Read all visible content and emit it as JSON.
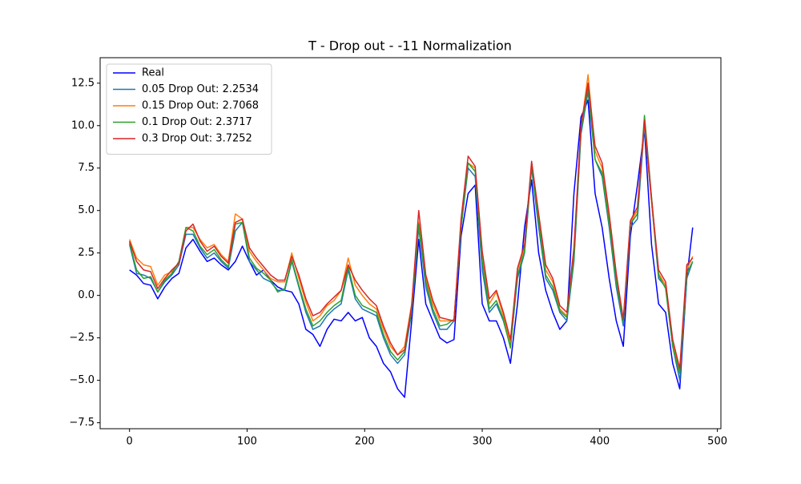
{
  "chart_data": {
    "type": "line",
    "title": "T - Drop out - -11 Normalization",
    "x": [
      0,
      6,
      12,
      18,
      24,
      30,
      36,
      42,
      48,
      54,
      60,
      66,
      72,
      78,
      84,
      90,
      96,
      102,
      108,
      114,
      120,
      126,
      132,
      138,
      144,
      150,
      156,
      162,
      168,
      174,
      180,
      186,
      192,
      198,
      204,
      210,
      216,
      222,
      228,
      234,
      240,
      246,
      252,
      258,
      264,
      270,
      276,
      282,
      288,
      294,
      300,
      306,
      312,
      318,
      324,
      330,
      336,
      342,
      348,
      354,
      360,
      366,
      372,
      378,
      384,
      390,
      396,
      402,
      408,
      414,
      420,
      426,
      432,
      438,
      444,
      450,
      456,
      462,
      468,
      474,
      479
    ],
    "series": [
      {
        "name": "Real",
        "color": "#0000ff",
        "values": [
          1.5,
          1.2,
          0.7,
          0.6,
          -0.2,
          0.5,
          1.0,
          1.3,
          2.8,
          3.3,
          2.6,
          2.0,
          2.2,
          1.8,
          1.5,
          2.0,
          2.9,
          2.0,
          1.2,
          1.5,
          0.9,
          0.5,
          0.3,
          0.2,
          -0.5,
          -2.0,
          -2.3,
          -3.0,
          -2.0,
          -1.4,
          -1.5,
          -1.0,
          -1.5,
          -1.3,
          -2.5,
          -3.0,
          -4.0,
          -4.5,
          -5.5,
          -6.0,
          -1.5,
          3.3,
          -0.5,
          -1.5,
          -2.5,
          -2.8,
          -2.6,
          3.5,
          6.0,
          6.5,
          -0.5,
          -1.5,
          -1.5,
          -2.5,
          -4.0,
          -0.5,
          4.0,
          6.8,
          2.5,
          0.3,
          -1.0,
          -2.0,
          -1.5,
          6.0,
          10.5,
          11.5,
          6.0,
          4.0,
          1.0,
          -1.5,
          -3.0,
          3.5,
          6.5,
          9.8,
          3.0,
          -0.5,
          -1.0,
          -4.0,
          -5.5,
          1.0,
          4.0
        ]
      },
      {
        "name": "0.05 Drop Out: 2.2534",
        "color": "#1f77b4",
        "values": [
          3.0,
          1.3,
          1.2,
          1.0,
          0.2,
          0.8,
          1.2,
          1.8,
          3.6,
          3.6,
          2.8,
          2.2,
          2.5,
          2.0,
          1.6,
          3.8,
          4.3,
          2.0,
          1.5,
          1.0,
          0.8,
          0.3,
          0.3,
          2.0,
          0.5,
          -1.0,
          -2.0,
          -1.8,
          -1.2,
          -0.8,
          -0.5,
          1.5,
          -0.2,
          -0.8,
          -1.0,
          -1.2,
          -2.5,
          -3.5,
          -4.0,
          -3.5,
          -1.0,
          4.0,
          0.5,
          -1.0,
          -2.0,
          -2.0,
          -1.5,
          4.0,
          7.5,
          7.0,
          1.5,
          -1.0,
          -0.5,
          -1.5,
          -3.0,
          1.0,
          2.5,
          7.5,
          4.0,
          1.0,
          0.3,
          -1.0,
          -1.5,
          2.0,
          9.5,
          12.0,
          8.0,
          7.0,
          4.0,
          0.5,
          -1.8,
          4.0,
          4.5,
          10.0,
          5.5,
          1.0,
          0.5,
          -3.0,
          -5.0,
          1.0,
          2.0
        ]
      },
      {
        "name": "0.15 Drop Out: 2.7068",
        "color": "#ff7f0e",
        "values": [
          3.3,
          2.2,
          1.8,
          1.7,
          0.6,
          1.2,
          1.4,
          1.9,
          4.0,
          4.0,
          3.3,
          2.8,
          3.0,
          2.4,
          2.0,
          4.8,
          4.5,
          2.6,
          2.0,
          1.5,
          1.0,
          0.8,
          0.8,
          2.5,
          1.0,
          -0.4,
          -1.5,
          -1.2,
          -0.6,
          -0.3,
          0.3,
          2.2,
          0.6,
          0.0,
          -0.5,
          -0.8,
          -2.0,
          -3.0,
          -3.5,
          -3.0,
          -0.5,
          4.3,
          1.0,
          -0.5,
          -1.5,
          -1.5,
          -1.5,
          4.2,
          7.8,
          7.5,
          2.5,
          -0.5,
          0.2,
          -1.2,
          -2.8,
          1.5,
          2.8,
          7.8,
          4.5,
          1.5,
          0.8,
          -0.8,
          -1.2,
          2.5,
          9.8,
          13.0,
          8.5,
          7.5,
          4.5,
          1.0,
          -1.5,
          4.3,
          5.0,
          10.2,
          5.5,
          1.3,
          0.6,
          -2.8,
          -4.5,
          1.5,
          2.3
        ]
      },
      {
        "name": "0.1 Drop Out: 2.3717",
        "color": "#2ca02c",
        "values": [
          3.1,
          1.5,
          1.0,
          1.1,
          0.2,
          0.9,
          1.3,
          2.0,
          4.0,
          3.8,
          2.9,
          2.4,
          2.7,
          2.1,
          1.7,
          4.2,
          4.3,
          2.2,
          1.6,
          1.3,
          0.9,
          0.2,
          0.4,
          2.1,
          0.6,
          -0.8,
          -1.8,
          -1.5,
          -1.0,
          -0.6,
          -0.3,
          1.7,
          0.0,
          -0.6,
          -0.8,
          -1.0,
          -2.3,
          -3.3,
          -3.8,
          -3.3,
          -0.8,
          4.2,
          0.8,
          -0.8,
          -1.8,
          -1.7,
          -1.4,
          4.0,
          7.8,
          7.3,
          2.0,
          -0.8,
          -0.3,
          -1.4,
          -3.1,
          1.2,
          2.6,
          7.7,
          4.3,
          1.2,
          0.5,
          -0.9,
          -1.3,
          2.2,
          9.7,
          12.3,
          8.0,
          7.2,
          4.2,
          0.8,
          -1.6,
          4.2,
          4.8,
          10.6,
          5.8,
          1.2,
          0.4,
          -3.0,
          -4.6,
          1.3,
          2.0
        ]
      },
      {
        "name": "0.3 Drop Out: 3.7252",
        "color": "#d62728",
        "values": [
          3.2,
          2.0,
          1.5,
          1.4,
          0.4,
          1.0,
          1.5,
          1.9,
          3.8,
          4.2,
          3.2,
          2.6,
          2.9,
          2.3,
          1.9,
          4.3,
          4.5,
          2.8,
          2.2,
          1.7,
          1.2,
          0.9,
          0.9,
          2.3,
          1.2,
          -0.2,
          -1.2,
          -1.0,
          -0.5,
          -0.1,
          0.3,
          1.8,
          0.9,
          0.3,
          -0.2,
          -0.6,
          -1.8,
          -2.8,
          -3.5,
          -3.2,
          -0.6,
          5.0,
          1.2,
          -0.3,
          -1.3,
          -1.4,
          -1.5,
          4.5,
          8.2,
          7.6,
          2.6,
          -0.2,
          0.3,
          -1.0,
          -2.6,
          1.6,
          3.0,
          7.9,
          4.8,
          1.8,
          1.0,
          -0.6,
          -1.0,
          2.8,
          10.0,
          12.5,
          8.8,
          7.8,
          4.8,
          1.3,
          -1.4,
          4.4,
          5.2,
          10.3,
          5.7,
          1.5,
          0.8,
          -2.6,
          -4.3,
          1.8,
          2.2
        ]
      }
    ],
    "xlim": [
      -25,
      503
    ],
    "ylim": [
      -7.85,
      14.0
    ],
    "xticks": [
      0,
      100,
      200,
      300,
      400,
      500
    ],
    "yticks": [
      {
        "value": -7.5,
        "label": "−7.5"
      },
      {
        "value": -5,
        "label": "−5.0"
      },
      {
        "value": -2.5,
        "label": "−2.5"
      },
      {
        "value": 0,
        "label": "0.0"
      },
      2.5,
      {
        "value": 5,
        "label": "5.0"
      },
      7.5,
      {
        "value": 10,
        "label": "10.0"
      },
      12.5
    ],
    "legend": "upper left"
  }
}
